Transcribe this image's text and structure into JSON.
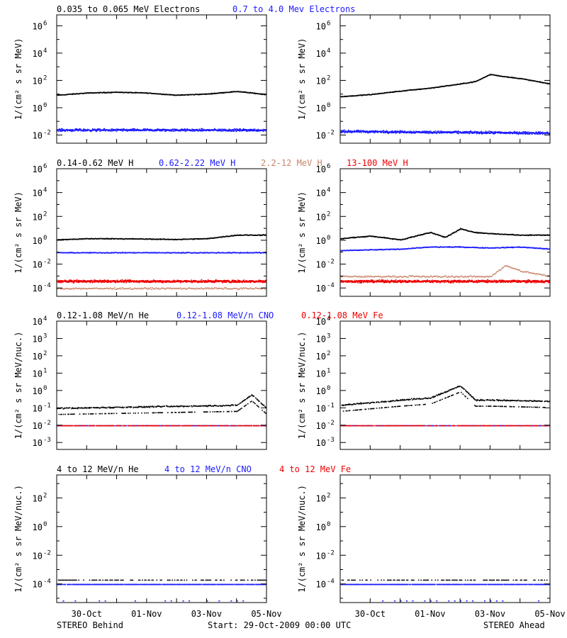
{
  "colors": {
    "black": "#000000",
    "blue": "#1a1aff",
    "tan": "#c8856a",
    "red": "#ee0000"
  },
  "rows": [
    {
      "id": "electrons",
      "legend": [
        {
          "label": "0.035 to 0.065 MeV Electrons",
          "color": "black"
        },
        {
          "label": "0.7 to 4.0 Mev Electrons",
          "color": "blue"
        }
      ],
      "ylabel": "1/(cm² s sr MeV)",
      "ticks": [
        {
          "base": "10",
          "exp": "6"
        },
        {
          "base": "10",
          "exp": "4"
        },
        {
          "base": "10",
          "exp": "2"
        },
        {
          "base": "10",
          "exp": "0"
        },
        {
          "base": "10",
          "exp": "-2"
        }
      ]
    },
    {
      "id": "protons",
      "legend": [
        {
          "label": "0.14-0.62 MeV H",
          "color": "black"
        },
        {
          "label": "0.62-2.22 MeV H",
          "color": "blue"
        },
        {
          "label": "2.2-12 MeV H",
          "color": "tan"
        },
        {
          "label": "13-100 MeV H",
          "color": "red"
        }
      ],
      "ylabel": "1/(cm² s sr MeV)",
      "ticks": [
        {
          "base": "10",
          "exp": "6"
        },
        {
          "base": "10",
          "exp": "4"
        },
        {
          "base": "10",
          "exp": "2"
        },
        {
          "base": "10",
          "exp": "0"
        },
        {
          "base": "10",
          "exp": "-2"
        },
        {
          "base": "10",
          "exp": "-4"
        }
      ]
    },
    {
      "id": "low-heavy",
      "legend": [
        {
          "label": "0.12-1.08 MeV/n He",
          "color": "black"
        },
        {
          "label": "0.12-1.08 MeV/n CNO",
          "color": "blue"
        },
        {
          "label": "0.12-1.08 MeV Fe",
          "color": "red"
        }
      ],
      "ylabel": "1/(cm² s sr MeV/nuc.)",
      "ticks": [
        {
          "base": "10",
          "exp": "4"
        },
        {
          "base": "10",
          "exp": "3"
        },
        {
          "base": "10",
          "exp": "2"
        },
        {
          "base": "10",
          "exp": "1"
        },
        {
          "base": "10",
          "exp": "0"
        },
        {
          "base": "10",
          "exp": "-1"
        },
        {
          "base": "10",
          "exp": "-2"
        },
        {
          "base": "10",
          "exp": "-3"
        }
      ]
    },
    {
      "id": "high-heavy",
      "legend": [
        {
          "label": "4 to 12 MeV/n He",
          "color": "black"
        },
        {
          "label": "4 to 12 MeV/n CNO",
          "color": "blue"
        },
        {
          "label": "4 to 12 MeV Fe",
          "color": "red"
        }
      ],
      "ylabel": "1/(cm² s sr MeV/nuc.)",
      "ticks": [
        {
          "base": "10",
          "exp": "2"
        },
        {
          "base": "10",
          "exp": "0"
        },
        {
          "base": "10",
          "exp": "-2"
        },
        {
          "base": "10",
          "exp": "-4"
        }
      ]
    }
  ],
  "x_ticks": [
    "30-Oct",
    "01-Nov",
    "03-Nov",
    "05-Nov"
  ],
  "footer": {
    "left": "STEREO Behind",
    "center": "Start: 29-Oct-2009 00:00 UTC",
    "right": "STEREO Ahead"
  },
  "chart_data": [
    {
      "panel": "STEREO Behind - electrons",
      "type": "scatter",
      "yscale": "log",
      "ylim": [
        0.001,
        10000000
      ],
      "xlim": [
        "2009-10-29T00:00",
        "2009-11-05T00:00"
      ],
      "series": [
        {
          "name": "0.035 to 0.065 MeV Electrons",
          "color": "black",
          "x": [
            "2009-10-29",
            "2009-10-30",
            "2009-10-31",
            "2009-11-01",
            "2009-11-02",
            "2009-11-03",
            "2009-11-04",
            "2009-11-05"
          ],
          "y": [
            9,
            13,
            15,
            13,
            9,
            11,
            17,
            10
          ]
        },
        {
          "name": "0.7 to 4.0 Mev Electrons",
          "color": "blue",
          "x": [
            "2009-10-29",
            "2009-11-05"
          ],
          "y": [
            0.025,
            0.025
          ]
        }
      ]
    },
    {
      "panel": "STEREO Ahead - electrons",
      "type": "scatter",
      "yscale": "log",
      "ylim": [
        0.001,
        10000000
      ],
      "xlim": [
        "2009-10-29T00:00",
        "2009-11-05T00:00"
      ],
      "series": [
        {
          "name": "0.035 to 0.065 MeV Electrons",
          "color": "black",
          "x": [
            "2009-10-29",
            "2009-10-30",
            "2009-10-31",
            "2009-11-01",
            "2009-11-02",
            "2009-11-02T12:00",
            "2009-11-03",
            "2009-11-03T12:00",
            "2009-11-04",
            "2009-11-05"
          ],
          "y": [
            7,
            10,
            18,
            30,
            60,
            90,
            300,
            200,
            150,
            60
          ]
        },
        {
          "name": "0.7 to 4.0 Mev Electrons",
          "color": "blue",
          "x": [
            "2009-10-29",
            "2009-11-05"
          ],
          "y": [
            0.02,
            0.015
          ]
        }
      ]
    },
    {
      "panel": "STEREO Behind - protons",
      "type": "scatter",
      "yscale": "log",
      "ylim": [
        1e-05,
        1000000
      ],
      "xlim": [
        "2009-10-29T00:00",
        "2009-11-05T00:00"
      ],
      "series": [
        {
          "name": "0.14-0.62 MeV H",
          "color": "black",
          "x": [
            "2009-10-29",
            "2009-10-30",
            "2009-10-31",
            "2009-11-02",
            "2009-11-03",
            "2009-11-04",
            "2009-11-05"
          ],
          "y": [
            1.2,
            1.5,
            1.5,
            1.3,
            1.5,
            3,
            3
          ]
        },
        {
          "name": "0.62-2.22 MeV H",
          "color": "blue",
          "x": [
            "2009-10-29",
            "2009-11-05"
          ],
          "y": [
            0.1,
            0.1
          ]
        },
        {
          "name": "2.2-12 MeV H",
          "color": "tan",
          "x": [
            "2009-10-29",
            "2009-11-05"
          ],
          "y": [
            0.0001,
            0.0001
          ]
        },
        {
          "name": "13-100 MeV H",
          "color": "red",
          "x": [
            "2009-10-29",
            "2009-11-05"
          ],
          "y": [
            0.0004,
            0.0004
          ]
        }
      ]
    },
    {
      "panel": "STEREO Ahead - protons",
      "type": "scatter",
      "yscale": "log",
      "ylim": [
        1e-05,
        1000000
      ],
      "xlim": [
        "2009-10-29T00:00",
        "2009-11-05T00:00"
      ],
      "series": [
        {
          "name": "0.14-0.62 MeV H",
          "color": "black",
          "x": [
            "2009-10-29",
            "2009-10-30",
            "2009-10-31",
            "2009-11-01",
            "2009-11-01T12:00",
            "2009-11-02",
            "2009-11-02T12:00",
            "2009-11-03",
            "2009-11-04",
            "2009-11-05"
          ],
          "y": [
            1.5,
            2.5,
            1.2,
            5,
            2,
            10,
            5,
            4,
            3,
            3
          ]
        },
        {
          "name": "0.62-2.22 MeV H",
          "color": "blue",
          "x": [
            "2009-10-29",
            "2009-10-31",
            "2009-11-01",
            "2009-11-02",
            "2009-11-03",
            "2009-11-04",
            "2009-11-05"
          ],
          "y": [
            0.15,
            0.2,
            0.3,
            0.3,
            0.25,
            0.3,
            0.2
          ]
        },
        {
          "name": "2.2-12 MeV H",
          "color": "tan",
          "x": [
            "2009-11-01",
            "2009-11-03",
            "2009-11-03T12:00",
            "2009-11-04",
            "2009-11-05"
          ],
          "y": [
            0.001,
            0.001,
            0.008,
            0.003,
            0.001
          ]
        },
        {
          "name": "13-100 MeV H",
          "color": "red",
          "x": [
            "2009-10-29",
            "2009-11-05"
          ],
          "y": [
            0.0004,
            0.0004
          ]
        }
      ]
    },
    {
      "panel": "STEREO Behind - 0.12-1.08 MeV/n heavy ions",
      "type": "scatter",
      "yscale": "log",
      "ylim": [
        0.0005,
        10000
      ],
      "xlim": [
        "2009-10-29T00:00",
        "2009-11-05T00:00"
      ],
      "series": [
        {
          "name": "0.12-1.08 MeV/n He",
          "color": "black",
          "x": [
            "2009-10-29",
            "2009-11-04",
            "2009-11-04T12:00",
            "2009-11-05"
          ],
          "y": [
            0.1,
            0.15,
            0.6,
            0.1
          ]
        },
        {
          "name": "0.12-1.08 MeV/n CNO",
          "color": "blue",
          "x": [
            "2009-10-29",
            "2009-11-05"
          ],
          "y": [
            0.01,
            0.01
          ]
        },
        {
          "name": "0.12-1.08 MeV Fe",
          "color": "red",
          "x": [
            "2009-10-29",
            "2009-11-05"
          ],
          "y": [
            0.01,
            0.01
          ]
        }
      ]
    },
    {
      "panel": "STEREO Ahead - 0.12-1.08 MeV/n heavy ions",
      "type": "scatter",
      "yscale": "log",
      "ylim": [
        0.0005,
        10000
      ],
      "xlim": [
        "2009-10-29T00:00",
        "2009-11-05T00:00"
      ],
      "series": [
        {
          "name": "0.12-1.08 MeV/n He",
          "color": "black",
          "x": [
            "2009-10-29",
            "2009-10-31",
            "2009-11-01",
            "2009-11-02",
            "2009-11-02T12:00",
            "2009-11-03",
            "2009-11-05"
          ],
          "y": [
            0.15,
            0.3,
            0.4,
            2,
            0.3,
            0.3,
            0.25
          ]
        },
        {
          "name": "0.12-1.08 MeV/n CNO",
          "color": "blue",
          "x": [
            "2009-10-29",
            "2009-11-05"
          ],
          "y": [
            0.01,
            0.01
          ]
        },
        {
          "name": "0.12-1.08 MeV Fe",
          "color": "red",
          "x": [
            "2009-10-29",
            "2009-11-05"
          ],
          "y": [
            0.01,
            0.01
          ]
        }
      ]
    },
    {
      "panel": "STEREO Behind - 4 to 12 MeV/n heavy ions",
      "type": "scatter",
      "yscale": "log",
      "ylim": [
        5e-06,
        10000
      ],
      "xlim": [
        "2009-10-29T00:00",
        "2009-11-05T00:00"
      ],
      "series": [
        {
          "name": "4 to 12 MeV/n He",
          "color": "black",
          "x": [
            "2009-10-29",
            "2009-11-05"
          ],
          "y": [
            0.0002,
            0.0002
          ]
        },
        {
          "name": "4 to 12 MeV/n CNO",
          "color": "blue",
          "x": [
            "2009-10-29",
            "2009-11-05"
          ],
          "y": [
            0.0001,
            0.0001
          ]
        },
        {
          "name": "4 to 12 MeV Fe",
          "color": "red",
          "x": [],
          "y": []
        }
      ]
    },
    {
      "panel": "STEREO Ahead - 4 to 12 MeV/n heavy ions",
      "type": "scatter",
      "yscale": "log",
      "ylim": [
        5e-06,
        10000
      ],
      "xlim": [
        "2009-10-29T00:00",
        "2009-11-05T00:00"
      ],
      "series": [
        {
          "name": "4 to 12 MeV/n He",
          "color": "black",
          "x": [
            "2009-10-29",
            "2009-11-05"
          ],
          "y": [
            0.0002,
            0.0002
          ]
        },
        {
          "name": "4 to 12 MeV/n CNO",
          "color": "blue",
          "x": [
            "2009-10-29",
            "2009-11-05"
          ],
          "y": [
            0.0001,
            0.0001
          ]
        },
        {
          "name": "4 to 12 MeV Fe",
          "color": "red",
          "x": [
            "2009-11-03"
          ],
          "y": [
            0.0001
          ]
        }
      ]
    }
  ]
}
